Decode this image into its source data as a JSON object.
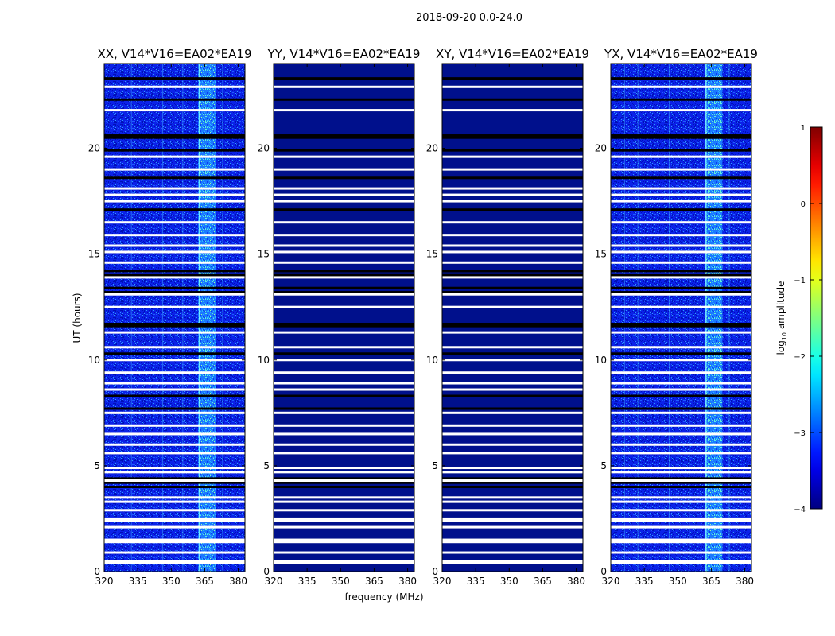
{
  "chart_data": {
    "type": "heatmap",
    "suptitle": "2018-09-20 0.0-24.0",
    "xlabel": "frequency (MHz)",
    "ylabel": "UT (hours)",
    "xlim": [
      320,
      383
    ],
    "ylim": [
      0,
      24
    ],
    "xticks": [
      "320",
      "335",
      "350",
      "365",
      "380"
    ],
    "yticks": [
      "0",
      "5",
      "10",
      "15",
      "20"
    ],
    "panels": [
      {
        "title": "XX, V14*V16=EA02*EA19",
        "kind": "bright"
      },
      {
        "title": "YY, V14*V16=EA02*EA19",
        "kind": "dim"
      },
      {
        "title": "XY, V14*V16=EA02*EA19",
        "kind": "dim"
      },
      {
        "title": "YX, V14*V16=EA02*EA19",
        "kind": "bright"
      }
    ],
    "colorbar": {
      "label": "log10 amplitude",
      "label_main": "log",
      "label_sub": "10",
      "label_rest": " amplitude",
      "min": -4,
      "max": 1,
      "ticks": [
        "1",
        "0",
        "−1",
        "−2",
        "−3",
        "−4"
      ],
      "colormap": "jet"
    },
    "bright_band_mhz": [
      362,
      370
    ],
    "white_gaps_hours": [
      0.4,
      0.5,
      0.9,
      1.4,
      1.5,
      2.1,
      2.4,
      2.5,
      2.9,
      3.3,
      3.5,
      4.3,
      4.7,
      4.9,
      5.6,
      6.0,
      6.5,
      6.9,
      7.5,
      8.6,
      8.9,
      9.4,
      10.0,
      10.6,
      11.3,
      12.5,
      13.1,
      13.9,
      14.6,
      15.1,
      15.4,
      15.9,
      16.5,
      17.5,
      17.8,
      18.1,
      19.0,
      19.6,
      21.8,
      22.9
    ],
    "dark_gaps_hours": [
      4.0,
      4.2,
      4.4,
      7.7,
      8.3,
      10.3,
      11.6,
      11.7,
      13.2,
      13.4,
      14.0,
      14.2,
      17.1,
      18.6,
      19.9,
      20.5,
      20.6,
      22.3,
      23.3
    ]
  }
}
